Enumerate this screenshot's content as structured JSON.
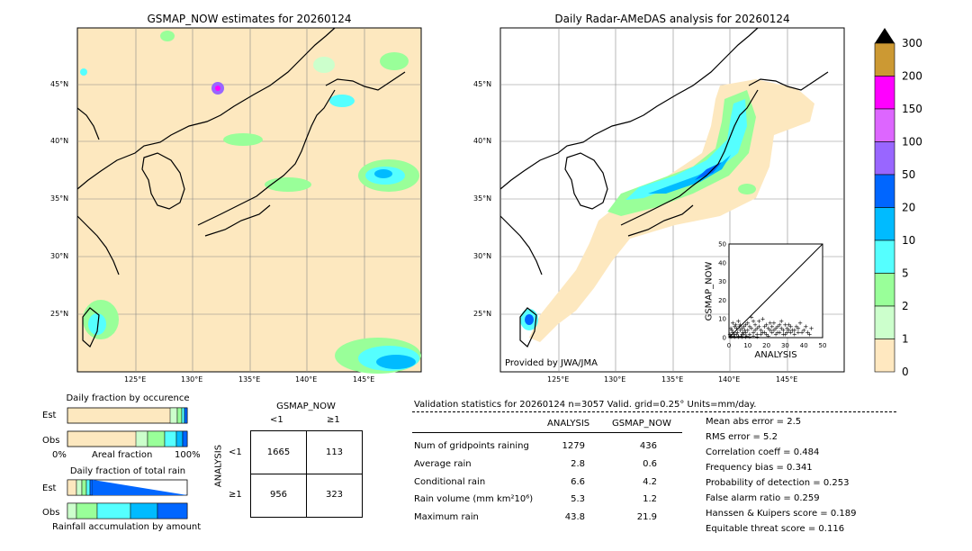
{
  "left_map": {
    "title": "GSMAP_NOW estimates for 20260124",
    "lon_ticks": [
      "125°E",
      "130°E",
      "135°E",
      "140°E",
      "145°E"
    ],
    "lat_ticks": [
      "45°N",
      "40°N",
      "35°N",
      "30°N",
      "25°N"
    ]
  },
  "right_map": {
    "title": "Daily Radar-AMeDAS analysis for 20260124",
    "lon_ticks": [
      "125°E",
      "130°E",
      "135°E",
      "140°E",
      "145°E"
    ],
    "lat_ticks": [
      "45°N",
      "40°N",
      "35°N",
      "30°N",
      "25°N"
    ],
    "credit": "Provided by JWA/JMA"
  },
  "colorbar": {
    "labels": [
      "300",
      "200",
      "150",
      "100",
      "50",
      "20",
      "10",
      "5",
      "2",
      "1",
      "0"
    ],
    "colors": [
      "#cc9933",
      "#ff00ff",
      "#dd66ff",
      "#9966ff",
      "#0066ff",
      "#00bbff",
      "#55ffff",
      "#99ff99",
      "#ccffcc",
      "#ffe8c0"
    ]
  },
  "fraction_occurrence": {
    "title": "Daily fraction by occurence",
    "row_est": "Est",
    "row_obs": "Obs",
    "x_left": "0%",
    "x_mid": "Areal fraction",
    "x_right": "100%"
  },
  "fraction_rain": {
    "title": "Daily fraction of total rain",
    "row_est": "Est",
    "row_obs": "Obs",
    "x_label": "Rainfall accumulation by amount"
  },
  "contingency": {
    "col_title": "GSMAP_NOW",
    "col_lt": "<1",
    "col_ge": "≥1",
    "row_title": "ANALYSIS",
    "row_lt": "<1",
    "row_ge": "≥1",
    "a": "1665",
    "b": "113",
    "c": "956",
    "d": "323"
  },
  "validation": {
    "header": "Validation statistics for 20260124  n=3057 Valid. grid=0.25° Units=mm/day.",
    "col_analysis": "ANALYSIS",
    "col_gsmap": "GSMAP_NOW",
    "rows": [
      {
        "label": "Num of gridpoints raining",
        "analysis": "1279",
        "gsmap": "436"
      },
      {
        "label": "Average rain",
        "analysis": "2.8",
        "gsmap": "0.6"
      },
      {
        "label": "Conditional rain",
        "analysis": "6.6",
        "gsmap": "4.2"
      },
      {
        "label": "Rain volume (mm km²10⁶)",
        "analysis": "5.3",
        "gsmap": "1.2"
      },
      {
        "label": "Maximum rain",
        "analysis": "43.8",
        "gsmap": "21.9"
      }
    ],
    "scores": [
      "Mean abs error =    2.5",
      "RMS error =    5.2",
      "Correlation coeff =  0.484",
      "Frequency bias =  0.341",
      "Probability of detection =  0.253",
      "False alarm ratio =  0.259",
      "Hanssen & Kuipers score =  0.189",
      "Equitable threat score =  0.116"
    ]
  },
  "chart_data": {
    "type": "scatter",
    "xlabel": "ANALYSIS",
    "ylabel": "GSMAP_NOW",
    "xlim": [
      0,
      50
    ],
    "ylim": [
      0,
      50
    ],
    "x_ticks": [
      "0",
      "10",
      "20",
      "30",
      "40",
      "50"
    ],
    "y_ticks": [
      "0",
      "10",
      "20",
      "30",
      "40",
      "50"
    ],
    "points": [
      [
        1,
        1
      ],
      [
        2,
        3
      ],
      [
        3,
        2
      ],
      [
        4,
        5
      ],
      [
        5,
        1
      ],
      [
        6,
        4
      ],
      [
        7,
        2
      ],
      [
        8,
        6
      ],
      [
        9,
        3
      ],
      [
        10,
        8
      ],
      [
        11,
        2
      ],
      [
        12,
        5
      ],
      [
        13,
        3
      ],
      [
        14,
        7
      ],
      [
        15,
        2
      ],
      [
        16,
        9
      ],
      [
        17,
        4
      ],
      [
        18,
        3
      ],
      [
        19,
        6
      ],
      [
        20,
        2
      ],
      [
        21,
        5
      ],
      [
        22,
        8
      ],
      [
        23,
        3
      ],
      [
        24,
        4
      ],
      [
        25,
        2
      ],
      [
        26,
        6
      ],
      [
        27,
        3
      ],
      [
        28,
        9
      ],
      [
        29,
        4
      ],
      [
        30,
        2
      ],
      [
        31,
        5
      ],
      [
        32,
        7
      ],
      [
        33,
        3
      ],
      [
        34,
        4
      ],
      [
        35,
        2
      ],
      [
        36,
        6
      ],
      [
        37,
        3
      ],
      [
        38,
        8
      ],
      [
        40,
        4
      ],
      [
        42,
        3
      ],
      [
        44,
        5
      ],
      [
        1,
        5
      ],
      [
        2,
        8
      ],
      [
        3,
        6
      ],
      [
        4,
        2
      ],
      [
        5,
        9
      ],
      [
        6,
        7
      ],
      [
        7,
        5
      ],
      [
        8,
        2
      ],
      [
        9,
        7
      ],
      [
        10,
        4
      ],
      [
        12,
        11
      ],
      [
        14,
        4
      ],
      [
        16,
        6
      ],
      [
        18,
        10
      ],
      [
        20,
        7
      ],
      [
        22,
        4
      ],
      [
        24,
        8
      ],
      [
        26,
        3
      ],
      [
        28,
        5
      ],
      [
        30,
        7
      ],
      [
        32,
        4
      ],
      [
        0.5,
        2
      ],
      [
        1.5,
        4
      ],
      [
        2.5,
        1
      ],
      [
        3.5,
        7
      ],
      [
        4.5,
        3
      ],
      [
        5.5,
        6
      ],
      [
        6.5,
        1
      ],
      [
        7.5,
        3
      ],
      [
        8.5,
        4
      ],
      [
        9.5,
        1
      ],
      [
        11,
        6
      ],
      [
        13,
        9
      ],
      [
        15,
        5
      ],
      [
        17,
        2
      ],
      [
        19,
        3
      ],
      [
        21,
        1
      ],
      [
        23,
        6
      ],
      [
        25,
        5
      ],
      [
        27,
        7
      ],
      [
        29,
        2
      ],
      [
        31,
        3
      ],
      [
        33,
        6
      ],
      [
        35,
        4
      ],
      [
        37,
        5
      ],
      [
        39,
        3
      ],
      [
        41,
        6
      ],
      [
        43,
        2
      ],
      [
        1,
        0.5
      ],
      [
        3,
        0.5
      ],
      [
        5,
        0.5
      ],
      [
        7,
        0.5
      ],
      [
        9,
        0.5
      ],
      [
        11,
        0.5
      ],
      [
        13,
        1
      ],
      [
        15,
        0.5
      ]
    ]
  }
}
